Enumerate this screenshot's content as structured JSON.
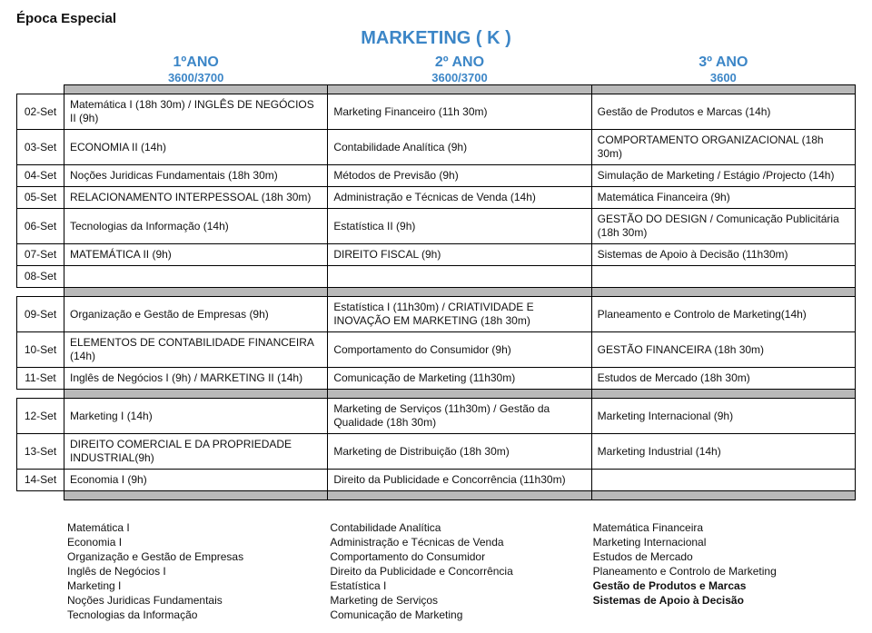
{
  "page": {
    "top_title": "Época Especial",
    "main_title": "MARKETING ( K )"
  },
  "header": {
    "years": [
      "1ºANO",
      "2º ANO",
      "3º ANO"
    ],
    "subs": [
      "3600/3700",
      "3600/3700",
      "3600"
    ]
  },
  "rows": [
    {
      "date": "02-Set",
      "c1": "Matemática I (18h 30m) / INGLÊS DE NEGÓCIOS II (9h)",
      "c2": "Marketing Financeiro (11h 30m)",
      "c3": "Gestão de Produtos e Marcas (14h)"
    },
    {
      "date": "03-Set",
      "c1": "ECONOMIA II (14h)",
      "c2": "Contabilidade Analítica (9h)",
      "c3": "COMPORTAMENTO ORGANIZACIONAL (18h 30m)"
    },
    {
      "date": "04-Set",
      "c1": "Noções Juridicas Fundamentais (18h 30m)",
      "c2": "Métodos de Previsão (9h)",
      "c3": "Simulação de Marketing / Estágio /Projecto (14h)"
    },
    {
      "date": "05-Set",
      "c1": "RELACIONAMENTO INTERPESSOAL (18h 30m)",
      "c2": "Administração e Técnicas de Venda (14h)",
      "c3": "Matemática Financeira (9h)"
    },
    {
      "date": "06-Set",
      "c1": "Tecnologias da Informação (14h)",
      "c2": "Estatística II (9h)",
      "c3": "GESTÃO DO DESIGN / Comunicação Publicitária (18h 30m)"
    },
    {
      "date": "07-Set",
      "c1": "MATEMÁTICA II (9h)",
      "c2": "DIREITO FISCAL (9h)",
      "c3": " Sistemas de Apoio à Decisão (11h30m)"
    },
    {
      "date": "08-Set",
      "c1": "",
      "c2": "",
      "c3": ""
    },
    {
      "date": "09-Set",
      "c1": "Organização e Gestão de Empresas (9h)",
      "c2": "Estatística I (11h30m) / CRIATIVIDADE E INOVAÇÃO EM MARKETING (18h 30m)",
      "c3": "Planeamento e Controlo de Marketing(14h)"
    },
    {
      "date": "10-Set",
      "c1": "ELEMENTOS DE CONTABILIDADE FINANCEIRA (14h)",
      "c2": "Comportamento do Consumidor (9h)",
      "c3": "GESTÃO FINANCEIRA (18h 30m)"
    },
    {
      "date": "11-Set",
      "c1": "Inglês de Negócios I (9h) /  MARKETING II (14h)",
      "c2": "Comunicação de Marketing (11h30m)",
      "c3": "Estudos de Mercado (18h 30m)"
    },
    {
      "date": "12-Set",
      "c1": "Marketing I (14h)",
      "c2": "Marketing de Serviços (11h30m) / Gestão da Qualidade (18h 30m)",
      "c3": "Marketing Internacional (9h)"
    },
    {
      "date": "13-Set",
      "c1": "DIREITO COMERCIAL E DA PROPRIEDADE INDUSTRIAL(9h)",
      "c2": "Marketing de Distribuição (18h 30m)",
      "c3": "Marketing Industrial (14h)"
    },
    {
      "date": "14-Set",
      "c1": "Economia I (9h)",
      "c2": "Direito da Publicidade e Concorrência (11h30m)",
      "c3": ""
    }
  ],
  "summary": {
    "col1": [
      {
        "text": "Matemática I",
        "bold": false
      },
      {
        "text": "Economia I",
        "bold": false
      },
      {
        "text": "Organização e Gestão de Empresas",
        "bold": false
      },
      {
        "text": "Inglês de Negócios I",
        "bold": false
      },
      {
        "text": "Marketing I",
        "bold": false
      },
      {
        "text": "Noções Juridicas Fundamentais",
        "bold": false
      },
      {
        "text": "Tecnologias da Informação",
        "bold": false
      }
    ],
    "col2": [
      {
        "text": "Contabilidade Analítica",
        "bold": false
      },
      {
        "text": "Administração e Técnicas de Venda",
        "bold": false
      },
      {
        "text": "Comportamento do Consumidor",
        "bold": false
      },
      {
        "text": "Direito da Publicidade e Concorrência",
        "bold": false
      },
      {
        "text": "Estatística I",
        "bold": false
      },
      {
        "text": "Marketing de Serviços",
        "bold": false
      },
      {
        "text": "Comunicação de Marketing",
        "bold": false
      }
    ],
    "col3": [
      {
        "text": "Matemática Financeira",
        "bold": false
      },
      {
        "text": "Marketing Internacional",
        "bold": false
      },
      {
        "text": "Estudos de Mercado",
        "bold": false
      },
      {
        "text": "Planeamento e Controlo de Marketing",
        "bold": false
      },
      {
        "text": "Gestão de Produtos e Marcas",
        "bold": true
      },
      {
        "text": "Sistemas de Apoio à Decisão",
        "bold": true
      }
    ]
  }
}
